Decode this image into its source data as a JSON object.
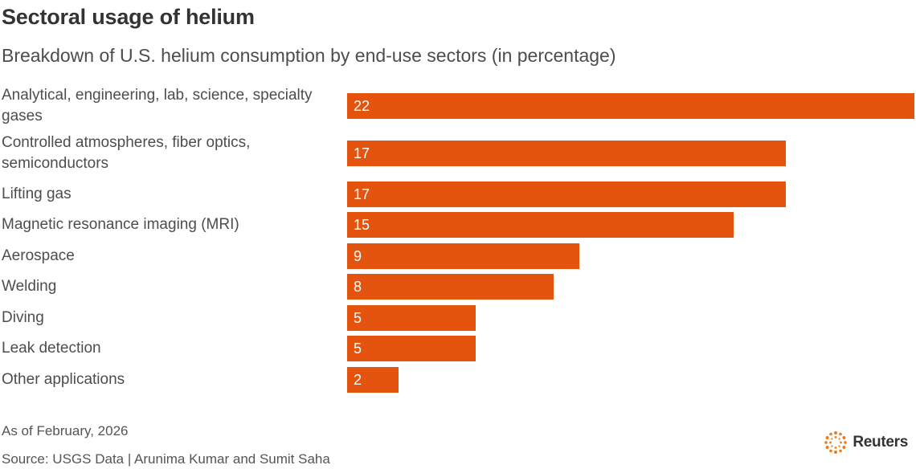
{
  "title": "Sectoral usage of helium",
  "subtitle": "Breakdown of U.S. helium consumption by end-use sectors (in percentage)",
  "footer": {
    "date_note": "As of February, 2026",
    "source": "Source: USGS Data | Arunima Kumar and Sumit Saha",
    "logo_text": "Reuters"
  },
  "colors": {
    "bar": "#e4540e",
    "bar_label": "#ffffff"
  },
  "chart_data": {
    "type": "bar",
    "orientation": "horizontal",
    "title": "Sectoral usage of helium",
    "subtitle": "Breakdown of U.S. helium consumption by end-use sectors (in percentage)",
    "categories": [
      "Analytical, engineering, lab, science, specialty gases",
      "Controlled atmospheres, fiber optics, semiconductors",
      "Lifting gas",
      "Magnetic resonance imaging (MRI)",
      "Aerospace",
      "Welding",
      "Diving",
      "Leak detection",
      "Other applications"
    ],
    "values": [
      22,
      17,
      17,
      15,
      9,
      8,
      5,
      5,
      2
    ],
    "xlim": [
      0,
      22
    ],
    "grid": false,
    "legend": "none",
    "data_labels": true
  }
}
